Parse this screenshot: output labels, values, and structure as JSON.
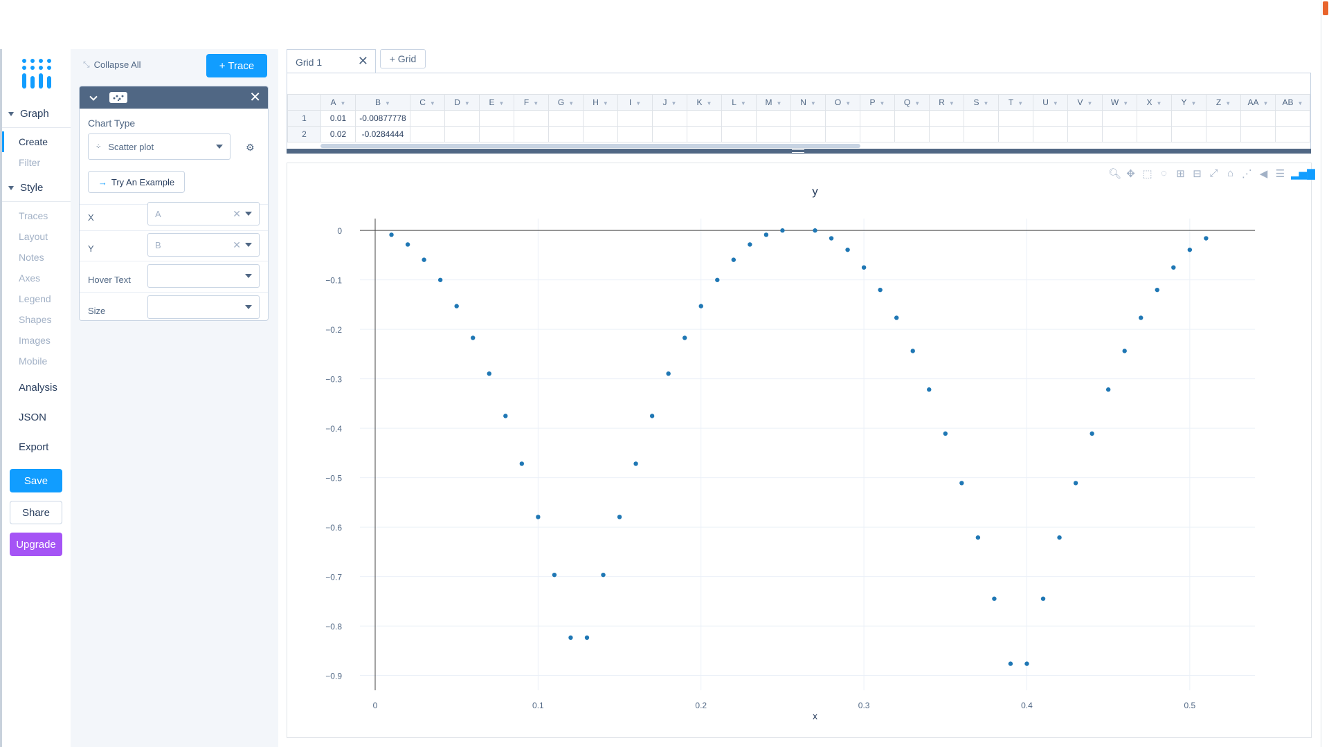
{
  "nav": {
    "graph_label": "Graph",
    "graph_items": [
      "Create",
      "Filter"
    ],
    "style_label": "Style",
    "style_items": [
      "Traces",
      "Layout",
      "Notes",
      "Axes",
      "Legend",
      "Shapes",
      "Images",
      "Mobile"
    ],
    "analysis": "Analysis",
    "json": "JSON",
    "export": "Export",
    "save": "Save",
    "share": "Share",
    "upgrade": "Upgrade"
  },
  "panel": {
    "collapse_all": "Collapse All",
    "add_trace": "+ Trace",
    "chart_type_label": "Chart Type",
    "chart_type_value": "Scatter plot",
    "try_example": "Try An Example",
    "x_label": "X",
    "x_value": "A",
    "y_label": "Y",
    "y_value": "B",
    "hover_label": "Hover Text",
    "size_label": "Size"
  },
  "grid": {
    "tab_label": "Grid 1",
    "add_grid": "+ Grid",
    "columns": [
      "A",
      "B",
      "C",
      "D",
      "E",
      "F",
      "G",
      "H",
      "I",
      "J",
      "K",
      "L",
      "M",
      "N",
      "O",
      "P",
      "Q",
      "R",
      "S",
      "T",
      "U",
      "V",
      "W",
      "X",
      "Y",
      "Z",
      "AA",
      "AB"
    ],
    "rows": [
      {
        "num": "1",
        "a": "0.01",
        "b": "-0.00877778"
      },
      {
        "num": "2",
        "a": "0.02",
        "b": "-0.0284444"
      }
    ]
  },
  "chart_data": {
    "type": "scatter",
    "title": "y",
    "xlabel": "x",
    "ylabel": "",
    "xlim": [
      0,
      0.54
    ],
    "ylim": [
      -0.93,
      0.01
    ],
    "xticks": [
      "0",
      "0.1",
      "0.2",
      "0.3",
      "0.4",
      "0.5"
    ],
    "xtick_values": [
      0,
      0.1,
      0.2,
      0.3,
      0.4,
      0.5
    ],
    "yticks": [
      "0",
      "−0.1",
      "−0.2",
      "−0.3",
      "−0.4",
      "−0.5",
      "−0.6",
      "−0.7",
      "−0.8",
      "−0.9"
    ],
    "ytick_values": [
      0,
      -0.1,
      -0.2,
      -0.3,
      -0.4,
      -0.5,
      -0.6,
      -0.7,
      -0.8,
      -0.9
    ],
    "grid": true,
    "color": "#1f77b4",
    "points": [
      [
        0.01,
        -0.0088
      ],
      [
        0.02,
        -0.0284
      ],
      [
        0.03,
        -0.0594
      ],
      [
        0.04,
        -0.1002
      ],
      [
        0.05,
        -0.1531
      ],
      [
        0.06,
        -0.2173
      ],
      [
        0.07,
        -0.2896
      ],
      [
        0.08,
        -0.3752
      ],
      [
        0.09,
        -0.4718
      ],
      [
        0.1,
        -0.5795
      ],
      [
        0.11,
        -0.6966
      ],
      [
        0.12,
        -0.8235
      ],
      [
        0.13,
        -0.8235
      ],
      [
        0.14,
        -0.6966
      ],
      [
        0.15,
        -0.5795
      ],
      [
        0.16,
        -0.4718
      ],
      [
        0.17,
        -0.3752
      ],
      [
        0.18,
        -0.2896
      ],
      [
        0.19,
        -0.2173
      ],
      [
        0.2,
        -0.1531
      ],
      [
        0.21,
        -0.1002
      ],
      [
        0.22,
        -0.0594
      ],
      [
        0.23,
        -0.0284
      ],
      [
        0.24,
        -0.0088
      ],
      [
        0.25,
        -0.0001
      ],
      [
        0.27,
        -0.0001
      ],
      [
        0.28,
        -0.0159
      ],
      [
        0.29,
        -0.0392
      ],
      [
        0.3,
        -0.0749
      ],
      [
        0.31,
        -0.1203
      ],
      [
        0.32,
        -0.1767
      ],
      [
        0.33,
        -0.2437
      ],
      [
        0.34,
        -0.3218
      ],
      [
        0.35,
        -0.4108
      ],
      [
        0.36,
        -0.5109
      ],
      [
        0.37,
        -0.6211
      ],
      [
        0.38,
        -0.7449
      ],
      [
        0.39,
        -0.8763
      ],
      [
        0.4,
        -0.8763
      ],
      [
        0.41,
        -0.7449
      ],
      [
        0.42,
        -0.6211
      ],
      [
        0.43,
        -0.5109
      ],
      [
        0.44,
        -0.4108
      ],
      [
        0.45,
        -0.3218
      ],
      [
        0.46,
        -0.2437
      ],
      [
        0.47,
        -0.1767
      ],
      [
        0.48,
        -0.1203
      ],
      [
        0.49,
        -0.0749
      ],
      [
        0.5,
        -0.0392
      ],
      [
        0.51,
        -0.0159
      ]
    ]
  }
}
